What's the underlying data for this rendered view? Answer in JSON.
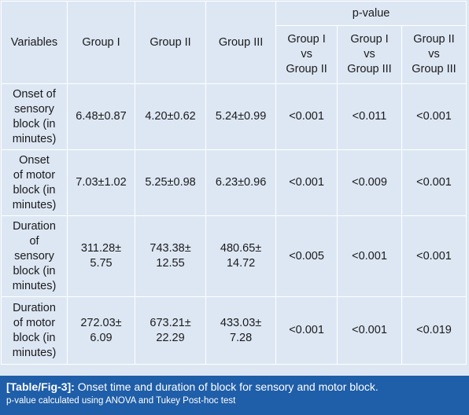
{
  "table": {
    "header": {
      "variables": "Variables",
      "group1": "Group I",
      "group2": "Group II",
      "group3": "Group III",
      "pvalue": "p-value",
      "cmp1": [
        "Group I",
        "vs",
        "Group II"
      ],
      "cmp2": [
        "Group I",
        "vs",
        "Group III"
      ],
      "cmp3": [
        "Group II",
        "vs",
        "Group III"
      ]
    },
    "rows": [
      {
        "variable": [
          "Onset of",
          "sensory",
          "block (in",
          "minutes)"
        ],
        "g1": [
          "6.48±0.87"
        ],
        "g2": [
          "4.20±0.62"
        ],
        "g3": [
          "5.24±0.99"
        ],
        "p1": "<0.001",
        "p2": "<0.011",
        "p3": "<0.001"
      },
      {
        "variable": [
          "Onset",
          "of motor",
          "block (in",
          "minutes)"
        ],
        "g1": [
          "7.03±1.02"
        ],
        "g2": [
          "5.25±0.98"
        ],
        "g3": [
          "6.23±0.96"
        ],
        "p1": "<0.001",
        "p2": "<0.009",
        "p3": "<0.001"
      },
      {
        "variable": [
          "Duration",
          "of",
          "sensory",
          "block (in",
          "minutes)"
        ],
        "g1": [
          "311.28±",
          "5.75"
        ],
        "g2": [
          "743.38±",
          "12.55"
        ],
        "g3": [
          "480.65±",
          "14.72"
        ],
        "p1": "<0.005",
        "p2": "<0.001",
        "p3": "<0.001"
      },
      {
        "variable": [
          "Duration",
          "of motor",
          "block (in",
          "minutes)"
        ],
        "g1": [
          "272.03±",
          "6.09"
        ],
        "g2": [
          "673.21±",
          "22.29"
        ],
        "g3": [
          "433.03±",
          "7.28"
        ],
        "p1": "<0.001",
        "p2": "<0.001",
        "p3": "<0.019"
      }
    ]
  },
  "caption": {
    "ref": "[Table/Fig-3]:",
    "text": "Onset time and duration of block for sensory and motor block.",
    "note": "p-value calculated using ANOVA and Tukey Post-hoc test"
  },
  "colors": {
    "header_text": "#1f5ea8",
    "cell_background": "#dde7f4",
    "caption_background": "#1f5ea8"
  }
}
